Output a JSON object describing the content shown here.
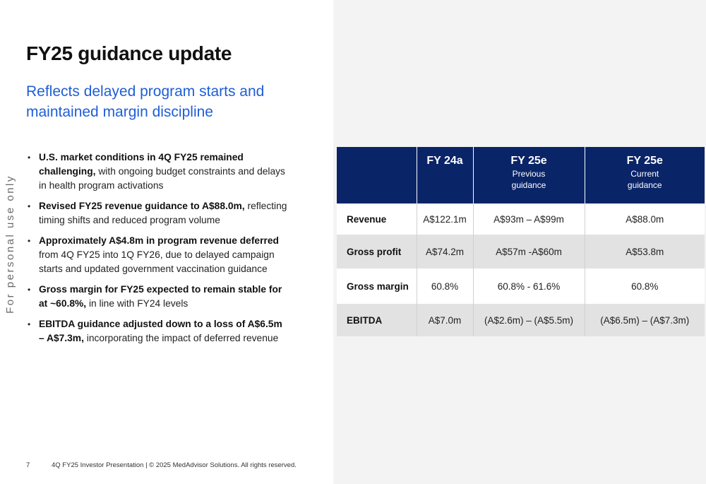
{
  "watermark": "For personal use only",
  "title": "FY25 guidance update",
  "subtitle": "Reflects delayed program starts and maintained margin discipline",
  "bullets": [
    {
      "bold": "U.S. market conditions in 4Q FY25 remained challenging,",
      "text": " with ongoing budget constraints and delays in health program activations"
    },
    {
      "bold": "Revised FY25 revenue guidance to A$88.0m,",
      "text": " reflecting timing shifts and reduced program volume"
    },
    {
      "bold": "Approximately A$4.8m in program revenue deferred",
      "text": " from 4Q FY25 into 1Q FY26, due to delayed campaign starts and updated government vaccination guidance"
    },
    {
      "bold": "Gross margin for FY25 expected to remain stable for at ~60.8%,",
      "text": " in line with FY24 levels"
    },
    {
      "bold": "EBITDA guidance adjusted down to a loss of A$6.5m – A$7.3m,",
      "text": " incorporating the impact of deferred revenue"
    }
  ],
  "table": {
    "headers": [
      {
        "main": "",
        "sub": []
      },
      {
        "main": "FY 24a",
        "sub": []
      },
      {
        "main": "FY 25e",
        "sub": [
          "Previous",
          "guidance"
        ]
      },
      {
        "main": "FY 25e",
        "sub": [
          "Current",
          "guidance"
        ]
      }
    ],
    "rows": [
      {
        "label": "Revenue",
        "values": [
          "A$122.1m",
          "A$93m – A$99m",
          "A$88.0m"
        ]
      },
      {
        "label": "Gross profit",
        "values": [
          "A$74.2m",
          "A$57m -A$60m",
          "A$53.8m"
        ]
      },
      {
        "label": "Gross margin",
        "values": [
          "60.8%",
          "60.8% - 61.6%",
          "60.8%"
        ]
      },
      {
        "label": "EBITDA",
        "values": [
          "A$7.0m",
          "(A$2.6m) – (A$5.5m)",
          "(A$6.5m) – (A$7.3m)"
        ]
      }
    ]
  },
  "footer": {
    "page": "7",
    "text": "4Q FY25 Investor Presentation | © 2025 MedAdvisor Solutions. All rights reserved."
  },
  "colors": {
    "header_navy": "#0a2468",
    "subtitle_blue": "#1f5ed6",
    "panel_grey": "#f3f3f3",
    "row_grey": "#e2e2e2"
  }
}
